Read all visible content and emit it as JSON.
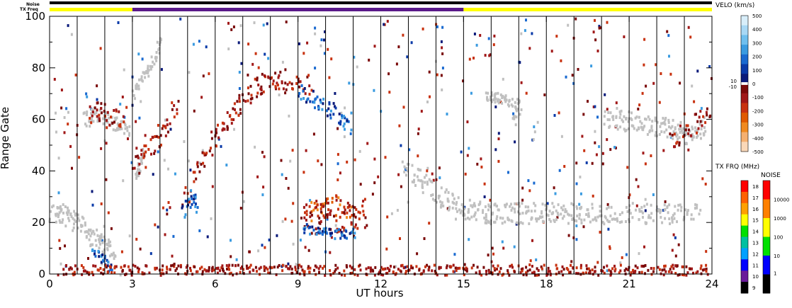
{
  "chart_data": {
    "type": "scatter",
    "title": "",
    "xlabel": "UT hours",
    "ylabel": "Range Gate",
    "xlim": [
      0,
      24
    ],
    "ylim": [
      0,
      100
    ],
    "x_ticks": [
      "0",
      "3",
      "6",
      "9",
      "12",
      "15",
      "18",
      "21",
      "24"
    ],
    "y_ticks": [
      "0",
      "20",
      "40",
      "60",
      "80",
      "100"
    ],
    "scan_lines_hours": [
      1,
      2,
      3,
      4,
      5,
      6,
      7,
      8,
      9,
      10,
      11,
      12,
      13,
      14,
      15,
      16,
      17,
      18,
      19,
      20,
      21,
      22,
      23
    ],
    "status_bars": {
      "noise_label": "Noise",
      "txfreq_label": "TX Freq",
      "noise_color": "#000000",
      "txfreq_segments": [
        {
          "start": 0,
          "end": 3,
          "color": "#ffff00"
        },
        {
          "start": 3,
          "end": 15,
          "color": "#5a1a8a"
        },
        {
          "start": 15,
          "end": 24,
          "color": "#ffff00"
        }
      ]
    },
    "velocity_scale": {
      "title": "VELO (km/s)",
      "ticks": [
        "500",
        "400",
        "300",
        "200",
        "100",
        "0",
        "-100",
        "-200",
        "-300",
        "-400",
        "-500"
      ],
      "ticks_values": [
        500,
        400,
        300,
        200,
        100,
        0,
        -100,
        -200,
        -300,
        -400,
        -500
      ],
      "side_labels": [
        "10",
        "-10"
      ],
      "colors": [
        "#d8eefa",
        "#a8d8f5",
        "#6fbfee",
        "#3a9be0",
        "#1a6ad0",
        "#0a3aa8",
        "#0a1a7a",
        "#7a0a0a",
        "#a01818",
        "#c83210",
        "#e05a00",
        "#f08a20",
        "#f5b070",
        "#fad8b8"
      ]
    },
    "txfreq_scale": {
      "title": "TX FRQ (MHz)",
      "ticks": [
        "18",
        "17",
        "16",
        "15",
        "14",
        "13",
        "12",
        "11",
        "10",
        "9"
      ],
      "colors": [
        "#ff0000",
        "#ff6000",
        "#ffa000",
        "#ffff00",
        "#00e000",
        "#00c0a0",
        "#00a0ff",
        "#0000ff",
        "#6a1a9a",
        "#000000"
      ]
    },
    "noise_scale": {
      "title": "NOISE",
      "ticks": [
        "10000",
        "1000",
        "100",
        "10",
        "1"
      ],
      "colors": [
        "#ff0000",
        "#ff8000",
        "#ffff00",
        "#00e000",
        "#0000ff",
        "#000000"
      ]
    },
    "ground_scatter_color": "#c0c0c0",
    "regions": [
      {
        "kind": "ground",
        "points": [
          [
            0.0,
            24
          ],
          [
            0.3,
            24
          ],
          [
            0.6,
            23
          ],
          [
            0.9,
            21
          ],
          [
            1.2,
            18
          ],
          [
            1.5,
            15
          ],
          [
            1.8,
            13
          ],
          [
            2.1,
            10
          ],
          [
            2.3,
            7
          ]
        ],
        "spread": 4
      },
      {
        "kind": "ground",
        "points": [
          [
            1.2,
            60
          ],
          [
            1.6,
            62
          ],
          [
            2.0,
            61
          ],
          [
            2.4,
            58
          ],
          [
            2.8,
            56
          ]
        ],
        "spread": 3
      },
      {
        "kind": "ground",
        "points": [
          [
            3.1,
            38
          ],
          [
            3.2,
            42
          ],
          [
            3.4,
            47
          ]
        ],
        "spread": 2
      },
      {
        "kind": "ground",
        "points": [
          [
            3.0,
            70
          ],
          [
            3.4,
            78
          ],
          [
            3.8,
            85
          ],
          [
            4.0,
            92
          ]
        ],
        "spread": 2
      },
      {
        "kind": "ground",
        "points": [
          [
            12.8,
            42
          ],
          [
            13.5,
            36
          ],
          [
            14.2,
            30
          ],
          [
            15.0,
            26
          ],
          [
            15.8,
            24
          ],
          [
            17.0,
            24
          ],
          [
            18.0,
            24
          ],
          [
            19.5,
            24
          ],
          [
            21.0,
            24
          ],
          [
            22.5,
            24
          ],
          [
            23.5,
            26
          ]
        ],
        "spread": 4
      },
      {
        "kind": "ground",
        "points": [
          [
            20.0,
            62
          ],
          [
            20.8,
            60
          ],
          [
            21.5,
            58
          ],
          [
            22.2,
            58
          ],
          [
            22.8,
            56
          ],
          [
            23.3,
            54
          ],
          [
            23.7,
            58
          ]
        ],
        "spread": 4
      },
      {
        "kind": "ground",
        "points": [
          [
            15.8,
            70
          ],
          [
            16.5,
            68
          ],
          [
            17.0,
            66
          ],
          [
            16.8,
            60
          ]
        ],
        "spread": 2
      },
      {
        "kind": "neg",
        "points": [
          [
            3.0,
            40
          ],
          [
            3.4,
            46
          ],
          [
            3.8,
            52
          ],
          [
            4.2,
            58
          ],
          [
            4.6,
            66
          ]
        ],
        "spread": 5
      },
      {
        "kind": "neg",
        "points": [
          [
            4.8,
            28
          ],
          [
            5.2,
            38
          ],
          [
            5.6,
            46
          ],
          [
            6.0,
            54
          ],
          [
            6.4,
            60
          ],
          [
            6.8,
            66
          ],
          [
            7.2,
            70
          ],
          [
            7.6,
            74
          ],
          [
            8.2,
            76
          ],
          [
            8.8,
            76
          ],
          [
            9.4,
            74
          ]
        ],
        "spread": 4
      },
      {
        "kind": "neg",
        "points": [
          [
            1.4,
            62
          ],
          [
            1.8,
            64
          ],
          [
            2.2,
            62
          ],
          [
            2.6,
            60
          ]
        ],
        "spread": 4
      },
      {
        "kind": "orange",
        "points": [
          [
            9.2,
            24
          ],
          [
            9.6,
            25
          ],
          [
            10.0,
            26
          ],
          [
            10.4,
            27
          ],
          [
            10.8,
            25
          ],
          [
            11.0,
            22
          ]
        ],
        "spread": 4
      },
      {
        "kind": "neg",
        "points": [
          [
            9.2,
            22
          ],
          [
            9.8,
            22
          ],
          [
            10.4,
            20
          ],
          [
            11.0,
            21
          ],
          [
            11.4,
            24
          ]
        ],
        "spread": 6
      },
      {
        "kind": "pos",
        "points": [
          [
            9.2,
            18
          ],
          [
            9.8,
            17
          ],
          [
            10.4,
            16
          ],
          [
            11.0,
            16
          ]
        ],
        "spread": 2
      },
      {
        "kind": "pos",
        "points": [
          [
            4.8,
            24
          ],
          [
            5.0,
            28
          ],
          [
            5.2,
            32
          ],
          [
            5.3,
            26
          ]
        ],
        "spread": 3
      },
      {
        "kind": "pos",
        "points": [
          [
            9.0,
            72
          ],
          [
            9.6,
            68
          ],
          [
            10.2,
            64
          ],
          [
            10.6,
            60
          ],
          [
            10.9,
            56
          ]
        ],
        "spread": 3
      },
      {
        "kind": "pos",
        "points": [
          [
            1.5,
            10
          ],
          [
            1.8,
            8
          ],
          [
            2.0,
            5
          ],
          [
            2.2,
            3
          ]
        ],
        "spread": 2
      },
      {
        "kind": "neg",
        "points": [
          [
            0.5,
            2
          ],
          [
            3,
            2
          ],
          [
            6,
            2
          ],
          [
            9,
            2
          ],
          [
            12,
            2
          ],
          [
            15,
            2
          ],
          [
            18,
            2
          ],
          [
            21,
            2
          ],
          [
            23.8,
            2
          ]
        ],
        "spread": 2
      },
      {
        "kind": "neg",
        "points": [
          [
            22.5,
            52
          ],
          [
            23.0,
            56
          ],
          [
            23.5,
            60
          ],
          [
            23.9,
            64
          ]
        ],
        "spread": 4
      }
    ]
  }
}
